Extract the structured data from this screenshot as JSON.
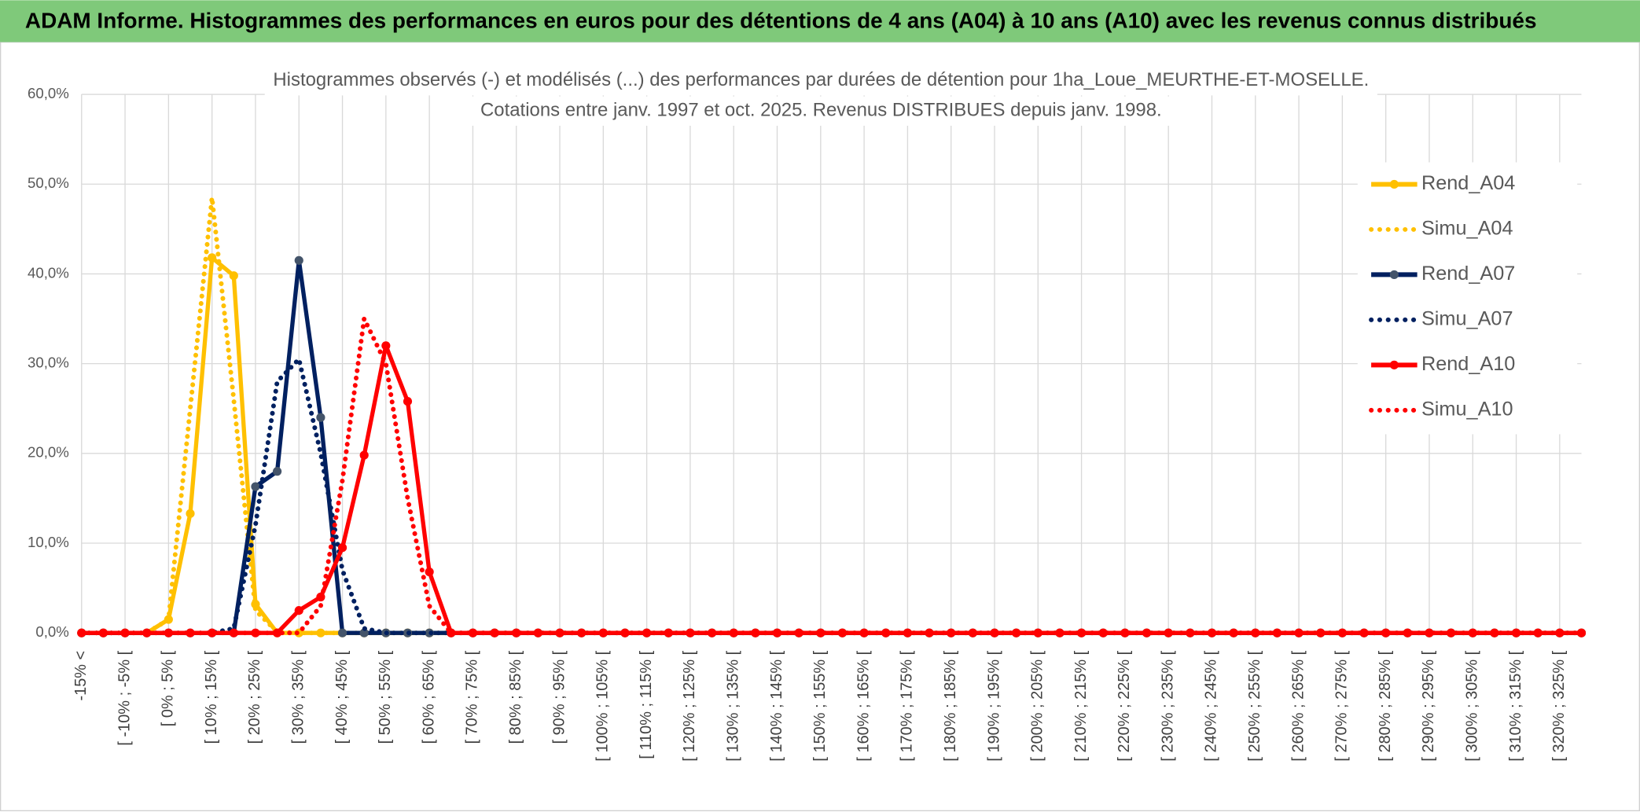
{
  "header": {
    "title": "ADAM Informe. Histogrammes des performances en euros pour des détentions de 4 ans (A04) à 10 ans (A10) avec les revenus connus distribués"
  },
  "chart_data": {
    "type": "line",
    "title": [
      "Histogrammes observés (-) et modélisés (...) des performances par durées de détention pour 1ha_Loue_MEURTHE-ET-MOSELLE.",
      "Cotations entre janv. 1997 et oct. 2025. Revenus DISTRIBUES depuis janv. 1998."
    ],
    "categories": [
      "-15% <",
      null,
      "[ -10% ; -5% [",
      null,
      "[ 0% ; 5% [",
      null,
      "[ 10% ; 15% [",
      null,
      "[ 20% ; 25% [",
      null,
      "[ 30% ; 35% [",
      null,
      "[ 40% ; 45% [",
      null,
      "[ 50% ; 55% [",
      null,
      "[ 60% ; 65% [",
      null,
      "[ 70% ; 75% [",
      null,
      "[ 80% ; 85% [",
      null,
      "[ 90% ; 95% [",
      null,
      "[ 100% ; 105% [",
      null,
      "[ 110% ; 115% [",
      null,
      "[ 120% ; 125% [",
      null,
      "[ 130% ; 135% [",
      null,
      "[ 140% ; 145% [",
      null,
      "[ 150% ; 155% [",
      null,
      "[ 160% ; 165% [",
      null,
      "[ 170% ; 175% [",
      null,
      "[ 180% ; 185% [",
      null,
      "[ 190% ; 195% [",
      null,
      "[ 200% ; 205% [",
      null,
      "[ 210% ; 215% [",
      null,
      "[ 220% ; 225% [",
      null,
      "[ 230% ; 235% [",
      null,
      "[ 240% ; 245% [",
      null,
      "[ 250% ; 255% [",
      null,
      "[ 260% ; 265% [",
      null,
      "[ 270% ; 275% [",
      null,
      "[ 280% ; 285% [",
      null,
      "[ 290% ; 295% [",
      null,
      "[ 300% ; 305% [",
      null,
      "[ 310% ; 315% [",
      null,
      "[ 320% ; 325% [",
      null
    ],
    "series": [
      {
        "name": "Rend_A04",
        "color": "#ffc000",
        "style": "solid",
        "values": [
          0,
          0,
          0,
          0,
          1.5,
          13.3,
          41.8,
          39.8,
          3.2,
          0,
          0,
          0,
          0,
          0,
          0,
          0,
          0,
          0,
          0,
          0,
          0,
          0,
          0,
          0,
          0,
          0,
          0,
          0,
          0,
          0,
          0,
          0,
          0,
          0,
          0,
          0,
          0,
          0,
          0,
          0,
          0,
          0,
          0,
          0,
          0,
          0,
          0,
          0,
          0,
          0,
          0,
          0,
          0,
          0,
          0,
          0,
          0,
          0,
          0,
          0,
          0,
          0,
          0,
          0,
          0,
          0,
          0,
          0,
          0,
          0
        ]
      },
      {
        "name": "Simu_A04",
        "color": "#ffc000",
        "style": "dotted",
        "values": [
          0,
          0,
          0,
          0,
          1.5,
          25,
          48.5,
          26,
          2.5,
          0.1,
          0,
          0,
          0,
          0,
          0,
          0,
          0,
          0,
          0,
          0,
          0,
          0,
          0,
          0,
          0,
          0,
          0,
          0,
          0,
          0,
          0,
          0,
          0,
          0,
          0,
          0,
          0,
          0,
          0,
          0,
          0,
          0,
          0,
          0,
          0,
          0,
          0,
          0,
          0,
          0,
          0,
          0,
          0,
          0,
          0,
          0,
          0,
          0,
          0,
          0,
          0,
          0,
          0,
          0,
          0,
          0,
          0,
          0,
          0,
          0
        ]
      },
      {
        "name": "Rend_A07",
        "color": "#002060",
        "style": "solid",
        "values": [
          0,
          0,
          0,
          0,
          0,
          0,
          0,
          0,
          16.3,
          18,
          41.5,
          24,
          0,
          0,
          0,
          0,
          0,
          0,
          0,
          0,
          0,
          0,
          0,
          0,
          0,
          0,
          0,
          0,
          0,
          0,
          0,
          0,
          0,
          0,
          0,
          0,
          0,
          0,
          0,
          0,
          0,
          0,
          0,
          0,
          0,
          0,
          0,
          0,
          0,
          0,
          0,
          0,
          0,
          0,
          0,
          0,
          0,
          0,
          0,
          0,
          0,
          0,
          0,
          0,
          0,
          0,
          0,
          0,
          0,
          0
        ]
      },
      {
        "name": "Simu_A07",
        "color": "#002060",
        "style": "dotted",
        "values": [
          0,
          0,
          0,
          0,
          0,
          0,
          0,
          0.5,
          12,
          28,
          30.5,
          20,
          7,
          0.5,
          0,
          0,
          0,
          0,
          0,
          0,
          0,
          0,
          0,
          0,
          0,
          0,
          0,
          0,
          0,
          0,
          0,
          0,
          0,
          0,
          0,
          0,
          0,
          0,
          0,
          0,
          0,
          0,
          0,
          0,
          0,
          0,
          0,
          0,
          0,
          0,
          0,
          0,
          0,
          0,
          0,
          0,
          0,
          0,
          0,
          0,
          0,
          0,
          0,
          0,
          0,
          0,
          0,
          0,
          0,
          0
        ]
      },
      {
        "name": "Rend_A10",
        "color": "#ff0000",
        "style": "solid",
        "values": [
          0,
          0,
          0,
          0,
          0,
          0,
          0,
          0,
          0,
          0,
          2.5,
          4,
          9.5,
          19.8,
          32,
          25.8,
          6.8,
          0,
          0,
          0,
          0,
          0,
          0,
          0,
          0,
          0,
          0,
          0,
          0,
          0,
          0,
          0,
          0,
          0,
          0,
          0,
          0,
          0,
          0,
          0,
          0,
          0,
          0,
          0,
          0,
          0,
          0,
          0,
          0,
          0,
          0,
          0,
          0,
          0,
          0,
          0,
          0,
          0,
          0,
          0,
          0,
          0,
          0,
          0,
          0,
          0,
          0,
          0,
          0,
          0
        ]
      },
      {
        "name": "Simu_A10",
        "color": "#ff0000",
        "style": "dotted",
        "values": [
          0,
          0,
          0,
          0,
          0,
          0,
          0,
          0,
          0,
          0,
          0,
          3,
          17,
          35,
          30,
          15,
          3,
          0,
          0,
          0,
          0,
          0,
          0,
          0,
          0,
          0,
          0,
          0,
          0,
          0,
          0,
          0,
          0,
          0,
          0,
          0,
          0,
          0,
          0,
          0,
          0,
          0,
          0,
          0,
          0,
          0,
          0,
          0,
          0,
          0,
          0,
          0,
          0,
          0,
          0,
          0,
          0,
          0,
          0,
          0,
          0,
          0,
          0,
          0,
          0,
          0,
          0,
          0,
          0,
          0
        ]
      }
    ],
    "ylim": [
      0,
      60
    ],
    "yticks": [
      {
        "value": 0,
        "label": "0,0%"
      },
      {
        "value": 10,
        "label": "10,0%"
      },
      {
        "value": 20,
        "label": "20,0%"
      },
      {
        "value": 30,
        "label": "30,0%"
      },
      {
        "value": 40,
        "label": "40,0%"
      },
      {
        "value": 50,
        "label": "50,0%"
      },
      {
        "value": 60,
        "label": "60,0%"
      }
    ],
    "grid": true,
    "legend": "right"
  }
}
